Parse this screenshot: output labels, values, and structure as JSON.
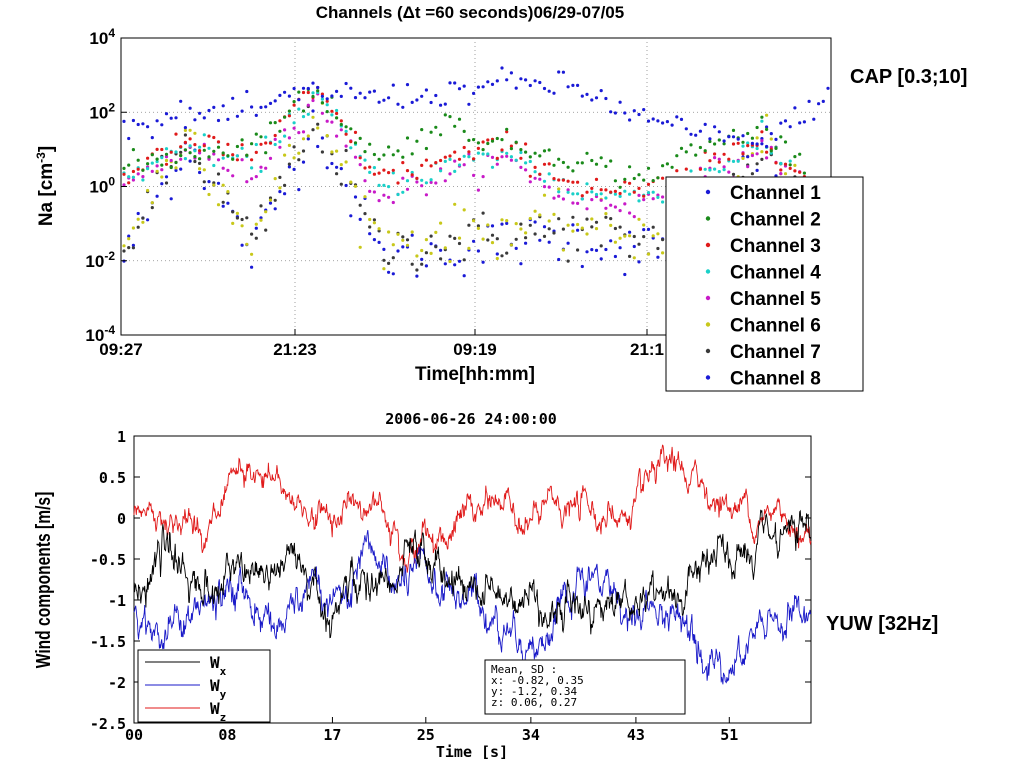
{
  "side_labels": {
    "top": "CAP [0.3;10]",
    "bottom": "YUW [32Hz]"
  },
  "chart_data": [
    {
      "type": "scatter",
      "title": "Channels (Δt =60 seconds)06/29-07/05",
      "xlabel": "Time[hh:mm]",
      "ylabel": "Na [cm⁻³]",
      "y_scale": "log",
      "ylim": [
        0.0001,
        10000
      ],
      "yticks": [
        {
          "label": "10",
          "exp": "4"
        },
        {
          "label": "10",
          "exp": "2"
        },
        {
          "label": "10",
          "exp": "0"
        },
        {
          "label": "10",
          "exp": "-2"
        },
        {
          "label": "10",
          "exp": "-4"
        }
      ],
      "xticks": [
        "09:27",
        "21:23",
        "09:19",
        "21:1"
      ],
      "grid": true,
      "legend_position": "right",
      "series": [
        {
          "name": "Channel 1",
          "color": "#1a1ad6",
          "median_log10": [
            1.6,
            1.9,
            2.0,
            2.6,
            2.4,
            2.5,
            2.8,
            2.7,
            1.9,
            1.4,
            1.1,
            2.5
          ]
        },
        {
          "name": "Channel 2",
          "color": "#1a8a1a",
          "median_log10": [
            0.5,
            0.9,
            1.1,
            2.6,
            0.7,
            1.7,
            1.1,
            0.8,
            0.2,
            1.0,
            1.6,
            -0.2
          ]
        },
        {
          "name": "Channel 3",
          "color": "#e01a1a",
          "median_log10": [
            0.3,
            1.2,
            0.8,
            2.6,
            0.2,
            0.7,
            1.1,
            0.1,
            -0.2,
            0.4,
            1.4,
            -0.5
          ]
        },
        {
          "name": "Channel 4",
          "color": "#1ad0c8",
          "median_log10": [
            0.2,
            1.1,
            0.6,
            2.5,
            0.0,
            0.5,
            0.9,
            -0.1,
            -0.3,
            0.3,
            1.2,
            -0.6
          ]
        },
        {
          "name": "Channel 5",
          "color": "#c81ac8",
          "median_log10": [
            0.0,
            1.0,
            0.3,
            2.4,
            -0.3,
            0.3,
            0.7,
            -0.4,
            -0.5,
            0.2,
            1.0,
            -0.7
          ]
        },
        {
          "name": "Channel 6",
          "color": "#c8c81a",
          "median_log10": [
            -1.5,
            1.5,
            -1.4,
            2.0,
            -1.5,
            -1.3,
            -1.1,
            -1.0,
            -1.3,
            -1.2,
            1.3,
            -1.4
          ]
        },
        {
          "name": "Channel 7",
          "color": "#3a3a3a",
          "median_log10": [
            -1.7,
            1.3,
            -1.6,
            1.9,
            -1.7,
            -1.5,
            -1.3,
            -1.2,
            -1.5,
            -1.4,
            1.2,
            -1.6
          ]
        },
        {
          "name": "Channel 8",
          "color": "#1a1ad6",
          "median_log10": [
            -1.9,
            1.2,
            -1.8,
            1.8,
            -1.9,
            -1.8,
            -1.5,
            -1.4,
            -1.7,
            -1.6,
            1.1,
            -1.8
          ]
        }
      ]
    },
    {
      "type": "line",
      "title": "2006-06-26 24:00:00",
      "xlabel": "Time [s]",
      "ylabel": "Wind components [m/s]",
      "ylim": [
        -2.5,
        1
      ],
      "yticks": [
        "1",
        "0.5",
        "0",
        "-0.5",
        "-1",
        "-1.5",
        "-2",
        "-2.5"
      ],
      "xticks": [
        "00",
        "08",
        "17",
        "25",
        "34",
        "43",
        "51"
      ],
      "legend_position": "bottom-left",
      "series": [
        {
          "name": "W",
          "sub": "x",
          "color": "#000000",
          "mean": -0.82,
          "sd": 0.35
        },
        {
          "name": "W",
          "sub": "y",
          "color": "#1a1ac8",
          "mean": -1.2,
          "sd": 0.34
        },
        {
          "name": "W",
          "sub": "z",
          "color": "#e01a1a",
          "mean": 0.06,
          "sd": 0.27
        }
      ],
      "stats_box": [
        "Mean, SD :",
        "x: -0.82, 0.35",
        "y: -1.2, 0.34",
        "z: 0.06,  0.27"
      ]
    }
  ]
}
